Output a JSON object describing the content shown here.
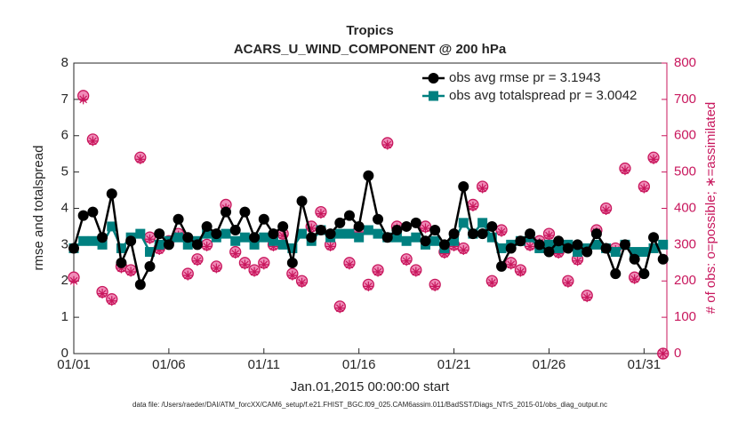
{
  "chart_data": {
    "type": "scatter",
    "title": "Tropics",
    "subtitle": "ACARS_U_WIND_COMPONENT @ 200 hPa",
    "xlabel": "Jan.01,2015 00:00:00 start",
    "ylabel": "rmse and totalspread",
    "y2label": "# of obs: o=possible; ∗=assimilated",
    "footnote": "data file: /Users/raeder/DAI/ATM_forcXX/CAM6_setup/f.e21.FHIST_BGC.f09_025.CAM6assim.011/BadSST/Diags_NTrS_2015-01/obs_diag_output.nc",
    "xlim": [
      0,
      31.2
    ],
    "xticks": [
      {
        "value": 0,
        "label": "01/01"
      },
      {
        "value": 5,
        "label": "01/06"
      },
      {
        "value": 10,
        "label": "01/11"
      },
      {
        "value": 15,
        "label": "01/16"
      },
      {
        "value": 20,
        "label": "01/21"
      },
      {
        "value": 25,
        "label": "01/26"
      },
      {
        "value": 30,
        "label": "01/31"
      }
    ],
    "ylim": [
      0,
      8
    ],
    "yticks": [
      0,
      1,
      2,
      3,
      4,
      5,
      6,
      7,
      8
    ],
    "y2lim": [
      0,
      800
    ],
    "y2ticks": [
      0,
      100,
      200,
      300,
      400,
      500,
      600,
      700,
      800
    ],
    "legend": "northeast",
    "x": [
      0,
      0.5,
      1,
      1.5,
      2,
      2.5,
      3,
      3.5,
      4,
      4.5,
      5,
      5.5,
      6,
      6.5,
      7,
      7.5,
      8,
      8.5,
      9,
      9.5,
      10,
      10.5,
      11,
      11.5,
      12,
      12.5,
      13,
      13.5,
      14,
      14.5,
      15,
      15.5,
      16,
      16.5,
      17,
      17.5,
      18,
      18.5,
      19,
      19.5,
      20,
      20.5,
      21,
      21.5,
      22,
      22.5,
      23,
      23.5,
      24,
      24.5,
      25,
      25.5,
      26,
      26.5,
      27,
      27.5,
      28,
      28.5,
      29,
      29.5,
      30,
      30.5,
      31
    ],
    "series": [
      {
        "name": "obs avg rmse pr = 3.1943",
        "color": "#000000",
        "marker": "circle",
        "values": [
          2.9,
          3.8,
          3.9,
          3.2,
          4.4,
          2.5,
          3.1,
          1.9,
          2.4,
          3.3,
          3.0,
          3.7,
          3.2,
          3.0,
          3.5,
          3.3,
          3.9,
          3.4,
          3.9,
          3.2,
          3.7,
          3.3,
          3.5,
          2.5,
          4.2,
          3.2,
          3.4,
          3.3,
          3.6,
          3.8,
          3.5,
          4.9,
          3.7,
          3.2,
          3.4,
          3.5,
          3.6,
          3.1,
          3.4,
          3.0,
          3.3,
          4.6,
          3.3,
          3.3,
          3.5,
          2.4,
          2.9,
          3.1,
          3.3,
          3.0,
          2.8,
          3.1,
          2.9,
          3.0,
          2.8,
          3.3,
          2.9,
          2.2,
          3.0,
          2.6,
          2.2,
          3.2,
          2.6
        ]
      },
      {
        "name": "obs avg totalspread pr = 3.0042",
        "color": "#008080",
        "marker": "square",
        "values": [
          2.9,
          3.1,
          3.1,
          3.0,
          3.5,
          2.9,
          3.2,
          3.3,
          2.8,
          3.0,
          3.1,
          3.2,
          3.0,
          3.1,
          3.3,
          3.2,
          3.3,
          3.1,
          3.2,
          3.0,
          3.2,
          3.1,
          3.0,
          2.9,
          3.3,
          3.1,
          3.4,
          3.2,
          3.3,
          3.3,
          3.2,
          3.4,
          3.3,
          3.2,
          3.2,
          3.1,
          3.2,
          3.0,
          3.1,
          2.9,
          3.1,
          3.6,
          3.3,
          3.6,
          3.2,
          2.9,
          3.0,
          3.1,
          3.2,
          2.9,
          3.0,
          2.9,
          3.0,
          2.8,
          2.9,
          3.0,
          2.9,
          2.8,
          3.0,
          2.8,
          2.8,
          2.9,
          3.0
        ]
      },
      {
        "color": "#c8175d",
        "marker": "circle-open",
        "axis": "y2",
        "values": [
          210,
          710,
          590,
          170,
          150,
          240,
          230,
          540,
          320,
          290,
          310,
          330,
          220,
          260,
          300,
          240,
          410,
          280,
          250,
          230,
          250,
          300,
          330,
          220,
          200,
          350,
          390,
          300,
          130,
          250,
          340,
          190,
          230,
          580,
          350,
          260,
          230,
          350,
          190,
          280,
          300,
          290,
          410,
          460,
          200,
          340,
          250,
          230,
          300,
          310,
          330,
          280,
          200,
          260,
          160,
          340,
          400,
          290,
          510,
          210,
          460,
          540,
          0
        ]
      },
      {
        "color": "#c8175d",
        "marker": "asterisk",
        "axis": "y2",
        "values": [
          200,
          700,
          585,
          165,
          145,
          235,
          225,
          535,
          315,
          285,
          305,
          325,
          215,
          255,
          295,
          235,
          400,
          275,
          245,
          225,
          245,
          295,
          325,
          215,
          195,
          345,
          385,
          295,
          125,
          245,
          335,
          185,
          225,
          575,
          345,
          255,
          225,
          345,
          185,
          275,
          295,
          285,
          405,
          455,
          195,
          335,
          245,
          225,
          295,
          305,
          325,
          275,
          195,
          255,
          155,
          335,
          395,
          285,
          505,
          205,
          455,
          535,
          0
        ]
      }
    ]
  }
}
